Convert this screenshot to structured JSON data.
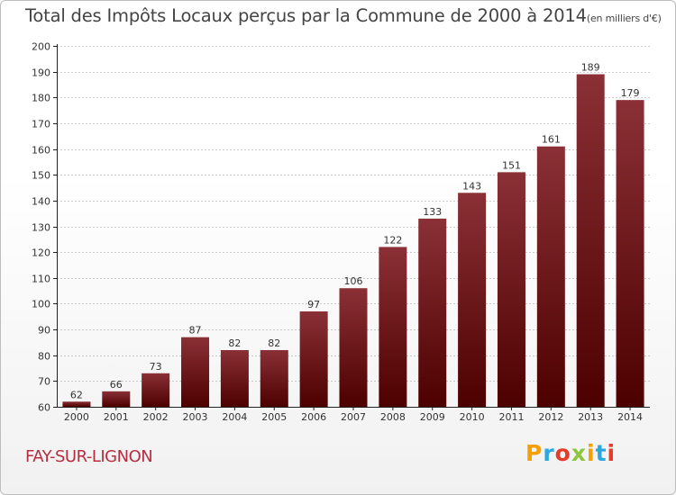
{
  "title": "Total des Impôts Locaux perçus par la Commune de 2000 à 2014",
  "title_unit": "(en milliers d'€)",
  "commune": "FAY-SUR-LIGNON",
  "brand": "Proxiti",
  "colors": {
    "bar_top": "#8a3036",
    "bar_bottom": "#4d0000",
    "axis": "#222222",
    "grid": "#999999",
    "brand_letters": [
      "#f5a000",
      "#2aa8e0",
      "#e63a2a",
      "#8cc63e",
      "#f5a000",
      "#2aa8e0",
      "#e63a2a"
    ]
  },
  "chart_data": {
    "type": "bar",
    "title": "Total des Impôts Locaux perçus par la Commune de 2000 à 2014",
    "xlabel": "",
    "ylabel": "en milliers d'€",
    "categories": [
      "2000",
      "2001",
      "2002",
      "2003",
      "2004",
      "2005",
      "2006",
      "2007",
      "2008",
      "2009",
      "2010",
      "2011",
      "2012",
      "2013",
      "2014"
    ],
    "values": [
      62,
      66,
      73,
      87,
      82,
      82,
      97,
      106,
      122,
      133,
      143,
      151,
      161,
      189,
      179
    ],
    "ylim": [
      60,
      200
    ],
    "yticks": [
      60,
      70,
      80,
      90,
      100,
      110,
      120,
      130,
      140,
      150,
      160,
      170,
      180,
      190,
      200
    ],
    "grid": "horizontal dashed",
    "data_labels": true
  }
}
